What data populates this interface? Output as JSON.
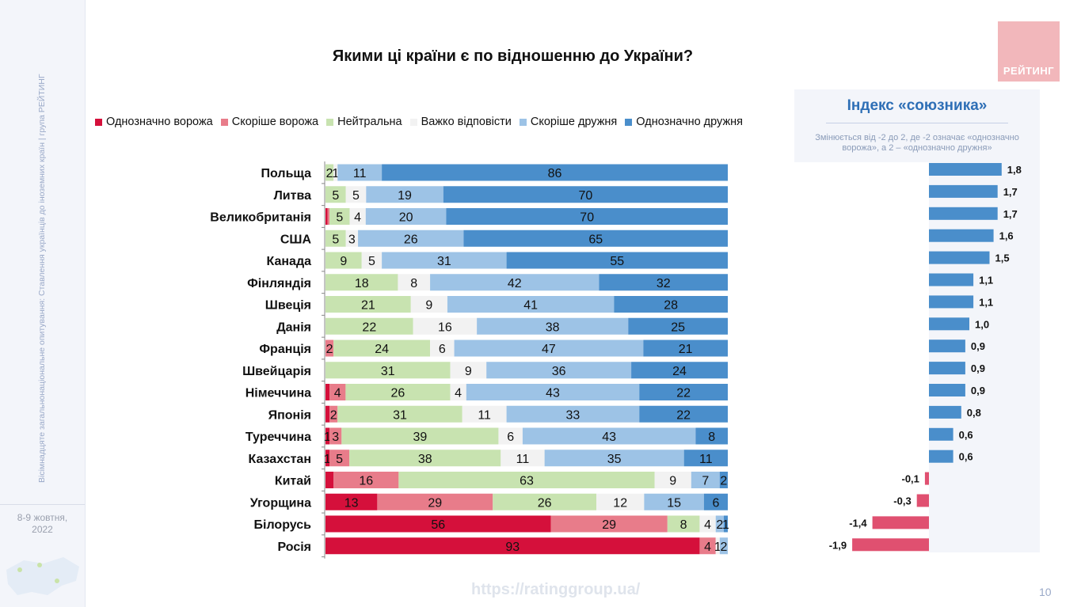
{
  "sidebar": {
    "vertical_text": "Вісімнадцяте загальнонаціональне опитування: Ставлення українців до іноземних країн | група РЕЙТИНГ",
    "date": "8-9 жовтня,",
    "year": "2022"
  },
  "header": {
    "title": "Якими ці країни є по відношенню до України?",
    "logo_text": "РЕЙТИНГ"
  },
  "colors": {
    "definitely_hostile": "#d5103b",
    "rather_hostile": "#e87c8a",
    "neutral": "#c8e3b0",
    "hard_to_say": "#f2f2f2",
    "rather_friendly": "#9dc3e6",
    "definitely_friendly": "#4a8ecb",
    "index_positive": "#4a8ecb",
    "index_negative": "#e05070"
  },
  "legend": [
    {
      "label": "Однозначно ворожа",
      "color": "#d5103b"
    },
    {
      "label": "Скоріше ворожа",
      "color": "#e87c8a"
    },
    {
      "label": "Нейтральна",
      "color": "#c8e3b0"
    },
    {
      "label": "Важко відповісти",
      "color": "#f2f2f2"
    },
    {
      "label": "Скоріше дружня",
      "color": "#9dc3e6"
    },
    {
      "label": "Однозначно дружня",
      "color": "#4a8ecb"
    }
  ],
  "index_panel": {
    "title": "Індекс «союзника»",
    "subtitle_line1": "Змінюється від -2 до 2, де -2 означає «однозначно",
    "subtitle_line2": "ворожа», а 2 – «однозначно дружня»"
  },
  "chart_data": [
    {
      "type": "bar",
      "orientation": "horizontal-stacked-100",
      "title": "Якими ці країни є по відношенню до України?",
      "categories": [
        "Польща",
        "Литва",
        "Великобританія",
        "США",
        "Канада",
        "Фінляндія",
        "Швеція",
        "Данія",
        "Франція",
        "Швейцарія",
        "Німеччина",
        "Японія",
        "Туреччина",
        "Казахстан",
        "Китай",
        "Угорщина",
        "Білорусь",
        "Росія"
      ],
      "series": [
        {
          "name": "Однозначно ворожа",
          "values": [
            0,
            0,
            0.5,
            0,
            0,
            0,
            0,
            0,
            0,
            0,
            1,
            1,
            1,
            1,
            2,
            13,
            56,
            93
          ],
          "labels": [
            "",
            "",
            "",
            "",
            "",
            "",
            "",
            "",
            "",
            "",
            "",
            "",
            "1",
            "1",
            "",
            "13",
            "56",
            "93"
          ]
        },
        {
          "name": "Скоріше ворожа",
          "values": [
            0,
            0,
            0.5,
            0,
            0,
            0,
            0,
            0,
            2,
            0,
            4,
            2,
            3,
            5,
            16,
            29,
            29,
            4
          ],
          "labels": [
            "",
            "",
            "",
            "",
            "",
            "",
            "",
            "",
            "2",
            "",
            "4",
            "2",
            "3",
            "5",
            "16",
            "29",
            "29",
            "4"
          ]
        },
        {
          "name": "Нейтральна",
          "values": [
            2,
            5,
            5,
            5,
            9,
            18,
            21,
            22,
            24,
            31,
            26,
            31,
            39,
            38,
            63,
            26,
            8,
            0
          ],
          "labels": [
            "2",
            "5",
            "5",
            "5",
            "9",
            "18",
            "21",
            "22",
            "24",
            "31",
            "26",
            "31",
            "39",
            "38",
            "63",
            "26",
            "8",
            ""
          ]
        },
        {
          "name": "Важко відповісти",
          "values": [
            1,
            5,
            4,
            3,
            5,
            8,
            9,
            16,
            6,
            9,
            4,
            11,
            6,
            11,
            9,
            12,
            4,
            1
          ],
          "labels": [
            "1",
            "5",
            "4",
            "3",
            "5",
            "8",
            "9",
            "16",
            "6",
            "9",
            "4",
            "11",
            "6",
            "11",
            "9",
            "12",
            "4",
            "1"
          ]
        },
        {
          "name": "Скоріше дружня",
          "values": [
            11,
            19,
            20,
            26,
            31,
            42,
            41,
            38,
            47,
            36,
            43,
            33,
            43,
            35,
            7,
            15,
            2,
            2
          ],
          "labels": [
            "11",
            "19",
            "20",
            "26",
            "31",
            "42",
            "41",
            "38",
            "47",
            "36",
            "43",
            "33",
            "43",
            "35",
            "7",
            "15",
            "2",
            "2"
          ]
        },
        {
          "name": "Однозначно дружня",
          "values": [
            86,
            70,
            70,
            65,
            55,
            32,
            28,
            25,
            21,
            24,
            22,
            22,
            8,
            11,
            2,
            6,
            1,
            0
          ],
          "labels": [
            "86",
            "70",
            "70",
            "65",
            "55",
            "32",
            "28",
            "25",
            "21",
            "24",
            "22",
            "22",
            "8",
            "11",
            "2",
            "6",
            "1",
            ""
          ]
        }
      ]
    },
    {
      "type": "bar",
      "orientation": "horizontal",
      "title": "Індекс «союзника»",
      "categories": [
        "Польща",
        "Литва",
        "Великобританія",
        "США",
        "Канада",
        "Фінляндія",
        "Швеція",
        "Данія",
        "Франція",
        "Швейцарія",
        "Німеччина",
        "Японія",
        "Туреччина",
        "Казахстан",
        "Китай",
        "Угорщина",
        "Білорусь",
        "Росія"
      ],
      "values": [
        1.8,
        1.7,
        1.7,
        1.6,
        1.5,
        1.1,
        1.1,
        1.0,
        0.9,
        0.9,
        0.9,
        0.8,
        0.6,
        0.6,
        -0.1,
        -0.3,
        -1.4,
        -1.9
      ],
      "labels": [
        "1,8",
        "1,7",
        "1,7",
        "1,6",
        "1,5",
        "1,1",
        "1,1",
        "1,0",
        "0,9",
        "0,9",
        "0,9",
        "0,8",
        "0,6",
        "0,6",
        "-0,1",
        "-0,3",
        "-1,4",
        "-1,9"
      ],
      "xlim": [
        -2,
        2
      ]
    }
  ],
  "footer": {
    "url": "https://ratinggroup.ua/",
    "page": "10"
  }
}
